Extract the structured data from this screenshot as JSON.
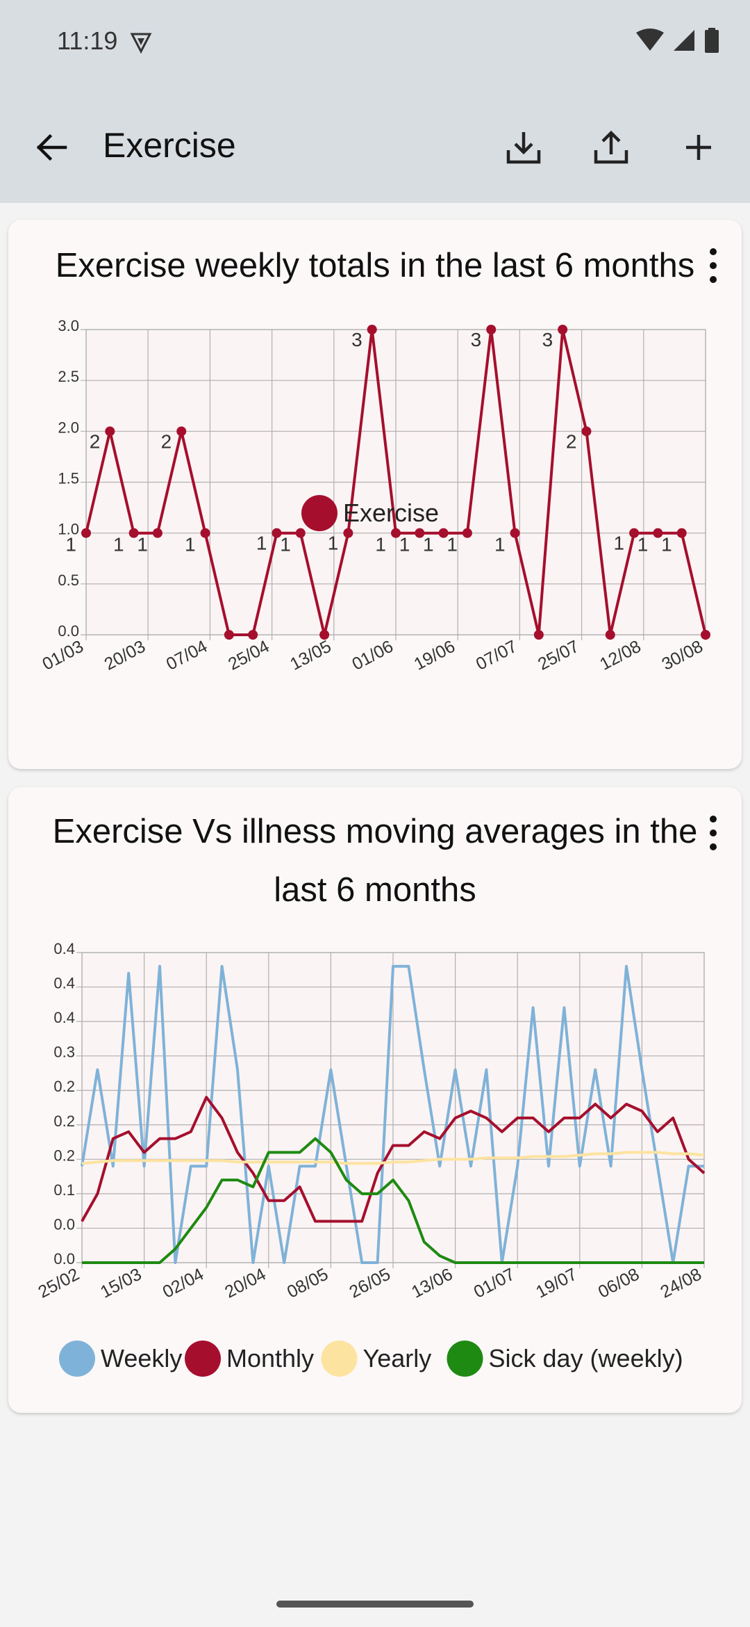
{
  "status_bar": {
    "time": "11:19"
  },
  "app_bar": {
    "title": "Exercise",
    "actions": [
      "download-icon",
      "share-icon",
      "add-icon"
    ]
  },
  "colors": {
    "exercise": "#a50f2d",
    "weekly": "#7fb2d8",
    "monthly": "#a50f2d",
    "yearly": "#fde3a0",
    "sick": "#1e8a12"
  },
  "cards": [
    {
      "title": "Exercise weekly totals in the last 6 months"
    },
    {
      "title": "Exercise Vs illness moving averages in the last 6 months"
    }
  ],
  "chart_data": [
    {
      "type": "line",
      "title": "Exercise weekly totals in the last 6 months",
      "xlabel": "",
      "ylabel": "",
      "ylim": [
        0,
        3
      ],
      "y_ticks": [
        "0.0",
        "0.5",
        "1.0",
        "1.5",
        "2.0",
        "2.5",
        "3.0"
      ],
      "x_ticks": [
        "01/03",
        "20/03",
        "07/04",
        "25/04",
        "13/05",
        "01/06",
        "19/06",
        "07/07",
        "25/07",
        "12/08",
        "30/08"
      ],
      "x": [
        "01/03",
        "08/03",
        "15/03",
        "22/03",
        "29/03",
        "05/04",
        "12/04",
        "19/04",
        "26/04",
        "03/05",
        "10/05",
        "17/05",
        "24/05",
        "31/05",
        "07/06",
        "14/06",
        "21/06",
        "28/06",
        "05/07",
        "12/07",
        "19/07",
        "26/07",
        "02/08",
        "09/08",
        "16/08",
        "23/08",
        "30/08"
      ],
      "series": [
        {
          "name": "Exercise",
          "values": [
            1,
            2,
            1,
            1,
            2,
            1,
            0,
            0,
            1,
            1,
            0,
            1,
            3,
            1,
            1,
            1,
            1,
            3,
            1,
            0,
            3,
            2,
            0,
            1,
            1,
            1,
            0
          ]
        }
      ],
      "data_labels_shown": true,
      "legend": "bottom-center",
      "grid": true
    },
    {
      "type": "line",
      "title": "Exercise Vs illness moving averages in the last 6 months",
      "xlabel": "",
      "ylabel": "",
      "ylim": [
        0,
        0.45
      ],
      "y_ticks": [
        "0.0",
        "0.0",
        "0.1",
        "0.2",
        "0.2",
        "0.2",
        "0.3",
        "0.4",
        "0.4",
        "0.4"
      ],
      "x_ticks": [
        "25/02",
        "15/03",
        "02/04",
        "20/04",
        "08/05",
        "26/05",
        "13/06",
        "01/07",
        "19/07",
        "06/08",
        "24/08"
      ],
      "x": [
        "25/02",
        "01/03",
        "05/03",
        "10/03",
        "15/03",
        "19/03",
        "24/03",
        "28/03",
        "02/04",
        "06/04",
        "11/04",
        "15/04",
        "20/04",
        "24/04",
        "29/04",
        "03/05",
        "08/05",
        "12/05",
        "17/05",
        "21/05",
        "26/05",
        "30/05",
        "04/06",
        "08/06",
        "13/06",
        "17/06",
        "22/06",
        "26/06",
        "01/07",
        "05/07",
        "10/07",
        "14/07",
        "19/07",
        "23/07",
        "28/07",
        "01/08",
        "06/08",
        "10/08",
        "15/08",
        "19/08",
        "24/08"
      ],
      "series": [
        {
          "name": "Weekly",
          "values": [
            0.14,
            0.28,
            0.14,
            0.42,
            0.14,
            0.43,
            0.0,
            0.14,
            0.14,
            0.43,
            0.28,
            0.0,
            0.14,
            0.0,
            0.14,
            0.14,
            0.28,
            0.14,
            0.0,
            0.0,
            0.43,
            0.43,
            0.28,
            0.14,
            0.28,
            0.14,
            0.28,
            0.0,
            0.14,
            0.37,
            0.14,
            0.37,
            0.14,
            0.28,
            0.14,
            0.43,
            0.28,
            0.14,
            0.0,
            0.14,
            0.14
          ]
        },
        {
          "name": "Monthly",
          "values": [
            0.06,
            0.1,
            0.18,
            0.19,
            0.16,
            0.18,
            0.18,
            0.19,
            0.24,
            0.21,
            0.16,
            0.13,
            0.09,
            0.09,
            0.11,
            0.06,
            0.06,
            0.06,
            0.06,
            0.13,
            0.17,
            0.17,
            0.19,
            0.18,
            0.21,
            0.22,
            0.21,
            0.19,
            0.21,
            0.21,
            0.19,
            0.21,
            0.21,
            0.23,
            0.21,
            0.23,
            0.22,
            0.19,
            0.21,
            0.15,
            0.13
          ]
        },
        {
          "name": "Yearly",
          "values": [
            0.144,
            0.146,
            0.148,
            0.148,
            0.148,
            0.148,
            0.148,
            0.148,
            0.148,
            0.148,
            0.146,
            0.146,
            0.146,
            0.146,
            0.146,
            0.146,
            0.146,
            0.144,
            0.144,
            0.144,
            0.146,
            0.146,
            0.148,
            0.15,
            0.15,
            0.15,
            0.152,
            0.152,
            0.152,
            0.154,
            0.154,
            0.154,
            0.156,
            0.158,
            0.158,
            0.16,
            0.16,
            0.16,
            0.158,
            0.158,
            0.156
          ]
        },
        {
          "name": "Sick day (weekly)",
          "values": [
            0,
            0,
            0,
            0,
            0,
            0,
            0.02,
            0.05,
            0.08,
            0.12,
            0.12,
            0.11,
            0.16,
            0.16,
            0.16,
            0.18,
            0.16,
            0.12,
            0.1,
            0.1,
            0.12,
            0.09,
            0.03,
            0.01,
            0,
            0,
            0,
            0,
            0,
            0,
            0,
            0,
            0,
            0,
            0,
            0,
            0,
            0,
            0,
            0,
            0
          ]
        }
      ],
      "legend": "bottom-center",
      "grid": true
    }
  ]
}
